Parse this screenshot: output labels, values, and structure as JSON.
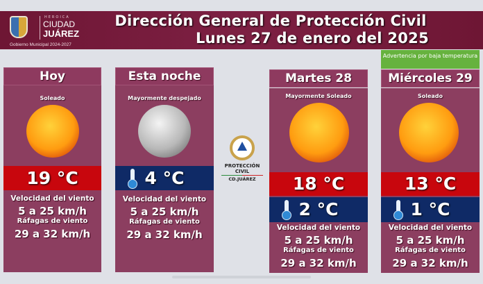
{
  "header": {
    "logo": {
      "heroica": "HEROICA",
      "ciudad": "CIUDAD",
      "juarez": "JUÁREZ",
      "gobierno": "Gobierno Municipal 2024-2027"
    },
    "title_line1": "Dirección General de Protección Civil",
    "title_line2": "Lunes 27 de enero del 2025"
  },
  "center_logo": {
    "name": "PROTECCIÓN CIVIL",
    "city": "CD.JUÁREZ"
  },
  "colors": {
    "header": "#7a1c3e",
    "card": "#8c3e60",
    "high_temp": "#c8060d",
    "low_temp": "#0f2a66",
    "warning": "#66b23e"
  },
  "days": [
    {
      "label": "Hoy",
      "condition": "Soleado",
      "icon": "sun-icon",
      "temp": "19",
      "unit": "°C",
      "wind_label": "Velocidad del viento",
      "wind": "5 a 25 km/h",
      "gust_label": "Ráfagas de viento",
      "gust": "29 a 32 km/h"
    },
    {
      "label": "Esta noche",
      "condition": "Mayormente despejado",
      "icon": "moon-icon",
      "temp": "4",
      "unit": "°C",
      "wind_label": "Velocidad del viento",
      "wind": "5 a 25 km/h",
      "gust_label": "Ráfagas de viento",
      "gust": "29 a 32 km/h"
    },
    {
      "label": "Martes 28",
      "condition": "Mayormente Soleado",
      "icon": "sun-icon",
      "high": "18",
      "low": "2",
      "unit": "°C",
      "wind_label": "Velocidad del viento",
      "wind": "5 a 25 km/h",
      "gust_label": "Ráfagas de viento",
      "gust": "29 a 32 km/h"
    },
    {
      "label": "Miércoles 29",
      "warning": "Advertencia por baja temperatura",
      "condition": "Soleado",
      "icon": "sun-icon",
      "high": "13",
      "low": "1",
      "unit": "°C",
      "wind_label": "Velocidad del viento",
      "wind": "5 a 25 km/h",
      "gust_label": "Ráfagas de viento",
      "gust": "29 a 32 km/h"
    }
  ]
}
